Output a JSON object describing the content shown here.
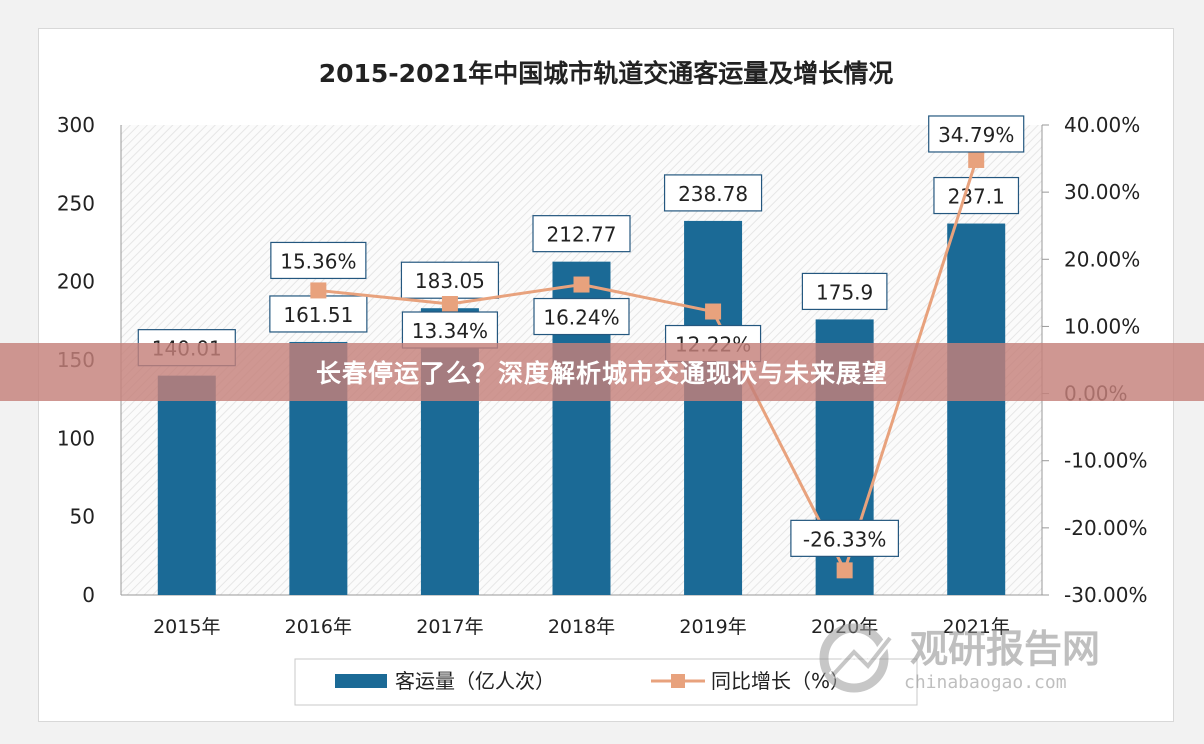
{
  "chart_data": {
    "type": "bar",
    "title": "2015-2021年中国城市轨道交通客运量及增长情况",
    "categories": [
      "2015年",
      "2016年",
      "2017年",
      "2018年",
      "2019年",
      "2020年",
      "2021年"
    ],
    "series": [
      {
        "name": "客运量（亿人次）",
        "type": "bar",
        "axis": "left",
        "values": [
          140.01,
          161.51,
          183.05,
          212.77,
          238.78,
          175.9,
          237.1
        ],
        "labels": [
          "140.01",
          "161.51",
          "183.05",
          "212.77",
          "238.78",
          "175.9",
          "237.1"
        ],
        "color": "#1b6a96"
      },
      {
        "name": "同比增长（%）",
        "type": "line",
        "axis": "right",
        "values": [
          null,
          15.36,
          13.34,
          16.24,
          12.22,
          -26.33,
          34.79
        ],
        "labels": [
          "",
          "15.36%",
          "13.34%",
          "16.24%",
          "12.22%",
          "-26.33%",
          "34.79%"
        ],
        "color": "#e8a27d"
      }
    ],
    "y_left": {
      "min": 0,
      "max": 300,
      "ticks": [
        "0",
        "50",
        "100",
        "150",
        "200",
        "250",
        "300"
      ]
    },
    "y_right": {
      "min": -30,
      "max": 40,
      "ticks": [
        "-30.00%",
        "-20.00%",
        "-10.00%",
        "0.00%",
        "10.00%",
        "20.00%",
        "30.00%",
        "40.00%"
      ]
    },
    "grid": false,
    "legend_position": "bottom"
  },
  "banner": {
    "text": "长春停运了么？深度解析城市交通现状与未来展望"
  },
  "watermark": {
    "title": "观研报告网",
    "url": "chinabaogao.com"
  }
}
